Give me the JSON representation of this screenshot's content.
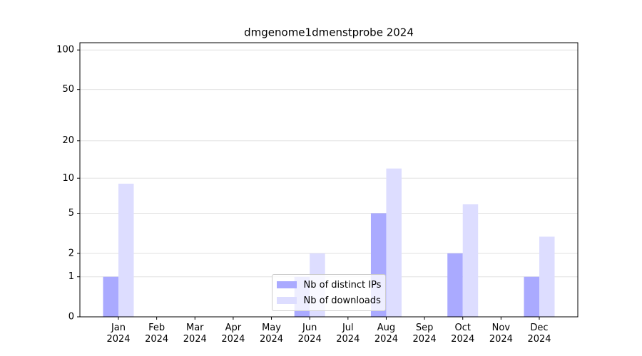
{
  "chart_data": {
    "type": "bar",
    "title": "dmgenome1dmenstprobe 2024",
    "categories": [
      "Jan\n2024",
      "Feb\n2024",
      "Mar\n2024",
      "Apr\n2024",
      "May\n2024",
      "Jun\n2024",
      "Jul\n2024",
      "Aug\n2024",
      "Sep\n2024",
      "Oct\n2024",
      "Nov\n2024",
      "Dec\n2024"
    ],
    "series": [
      {
        "name": "Nb of distinct IPs",
        "color": "#aaaaff",
        "values": [
          1,
          0,
          0,
          0,
          0,
          1,
          0,
          5,
          0,
          2,
          0,
          1
        ]
      },
      {
        "name": "Nb of downloads",
        "color": "#ddddff",
        "values": [
          9,
          0,
          0,
          0,
          0,
          2,
          0,
          12,
          0,
          6,
          0,
          3
        ]
      }
    ],
    "yscale": "log1p",
    "ylim": [
      0,
      113.5
    ],
    "yticks": [
      0,
      1,
      2,
      5,
      10,
      20,
      50,
      100
    ],
    "grid": true,
    "legend": "lower center"
  }
}
